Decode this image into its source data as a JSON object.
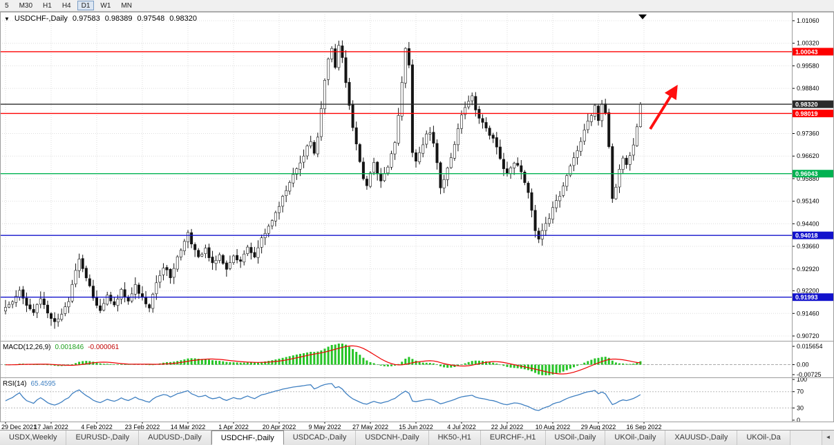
{
  "toolbar": {
    "timeframes": [
      "5",
      "M30",
      "H1",
      "H4",
      "D1",
      "W1",
      "MN"
    ],
    "active": "D1"
  },
  "chart_title": {
    "collapse_arrow": "▼",
    "symbol": "USDCHF-,Daily",
    "open": "0.97583",
    "high": "0.98389",
    "low": "0.97548",
    "close": "0.98320"
  },
  "chart_data": {
    "type": "candlestick",
    "symbol": "USDCHF-",
    "period": "Daily",
    "candle_count": 182,
    "last_candle": {
      "open": 0.97583,
      "high": 0.98389,
      "low": 0.97548,
      "close": 0.9832
    },
    "y_axis": {
      "price_max": 1.013541,
      "price_min": 0.905613,
      "tick_labels": [
        "1.01060",
        "1.00320",
        "0.99580",
        "0.98840",
        "0.97360",
        "0.96620",
        "0.95880",
        "0.95140",
        "0.94400",
        "0.93660",
        "0.92920",
        "0.92200",
        "0.91460",
        "0.90720"
      ]
    },
    "x_axis": {
      "candles_per_gridline": 13,
      "date_labels": [
        "29 Dec 2021",
        "17 Jan 2022",
        "4 Feb 2022",
        "23 Feb 2022",
        "14 Mar 2022",
        "1 Apr 2022",
        "20 Apr 2022",
        "9 May 2022",
        "27 May 2022",
        "15 Jun 2022",
        "4 Jul 2022",
        "22 Jul 2022",
        "10 Aug 2022",
        "29 Aug 2022",
        "16 Sep 2022"
      ]
    },
    "price_path": [
      [
        0,
        0.9165
      ],
      [
        2,
        0.919
      ],
      [
        4,
        0.9228
      ],
      [
        6,
        0.9178
      ],
      [
        8,
        0.9148
      ],
      [
        10,
        0.9192
      ],
      [
        12,
        0.915
      ],
      [
        14,
        0.9118
      ],
      [
        16,
        0.9142
      ],
      [
        18,
        0.919
      ],
      [
        20,
        0.9288
      ],
      [
        21,
        0.9322
      ],
      [
        23,
        0.9268
      ],
      [
        25,
        0.9198
      ],
      [
        27,
        0.9158
      ],
      [
        29,
        0.9212
      ],
      [
        31,
        0.9168
      ],
      [
        33,
        0.9222
      ],
      [
        35,
        0.9188
      ],
      [
        37,
        0.9238
      ],
      [
        39,
        0.9198
      ],
      [
        41,
        0.9168
      ],
      [
        43,
        0.9252
      ],
      [
        45,
        0.9298
      ],
      [
        47,
        0.9268
      ],
      [
        49,
        0.9328
      ],
      [
        51,
        0.9388
      ],
      [
        52,
        0.9415
      ],
      [
        53,
        0.9368
      ],
      [
        55,
        0.9328
      ],
      [
        57,
        0.9362
      ],
      [
        59,
        0.9308
      ],
      [
        61,
        0.9342
      ],
      [
        63,
        0.9288
      ],
      [
        65,
        0.9328
      ],
      [
        67,
        0.9318
      ],
      [
        69,
        0.9358
      ],
      [
        71,
        0.9328
      ],
      [
        73,
        0.9388
      ],
      [
        75,
        0.9428
      ],
      [
        77,
        0.9472
      ],
      [
        79,
        0.9528
      ],
      [
        81,
        0.9578
      ],
      [
        83,
        0.9622
      ],
      [
        85,
        0.9668
      ],
      [
        87,
        0.9715
      ],
      [
        88,
        0.9665
      ],
      [
        89,
        0.972
      ],
      [
        90,
        0.982
      ],
      [
        91,
        0.9905
      ],
      [
        92,
        0.9975
      ],
      [
        93,
        1.002
      ],
      [
        94,
        0.9955
      ],
      [
        95,
        1.003
      ],
      [
        96,
        0.9985
      ],
      [
        97,
        0.9905
      ],
      [
        98,
        0.983
      ],
      [
        99,
        0.976
      ],
      [
        100,
        0.97
      ],
      [
        101,
        0.964
      ],
      [
        102,
        0.959
      ],
      [
        103,
        0.956
      ],
      [
        104,
        0.96
      ],
      [
        105,
        0.964
      ],
      [
        106,
        0.961
      ],
      [
        107,
        0.9586
      ],
      [
        108,
        0.9605
      ],
      [
        109,
        0.963
      ],
      [
        110,
        0.9665
      ],
      [
        111,
        0.9705
      ],
      [
        112,
        0.979
      ],
      [
        113,
        0.99
      ],
      [
        114,
        1.001
      ],
      [
        115,
        0.9955
      ],
      [
        116,
        0.968
      ],
      [
        117,
        0.964
      ],
      [
        118,
        0.967
      ],
      [
        119,
        0.9705
      ],
      [
        120,
        0.974
      ],
      [
        121,
        0.9745
      ],
      [
        122,
        0.97
      ],
      [
        123,
        0.9645
      ],
      [
        124,
        0.956
      ],
      [
        125,
        0.959
      ],
      [
        126,
        0.9625
      ],
      [
        128,
        0.97
      ],
      [
        130,
        0.979
      ],
      [
        131,
        0.9815
      ],
      [
        132,
        0.984
      ],
      [
        133,
        0.9855
      ],
      [
        134,
        0.982
      ],
      [
        135,
        0.979
      ],
      [
        136,
        0.977
      ],
      [
        137,
        0.975
      ],
      [
        139,
        0.972
      ],
      [
        140,
        0.969
      ],
      [
        141,
        0.965
      ],
      [
        142,
        0.9625
      ],
      [
        143,
        0.96
      ],
      [
        144,
        0.962
      ],
      [
        145,
        0.964
      ],
      [
        146,
        0.9625
      ],
      [
        147,
        0.961
      ],
      [
        148,
        0.958
      ],
      [
        149,
        0.954
      ],
      [
        150,
        0.948
      ],
      [
        151,
        0.942
      ],
      [
        152,
        0.9385
      ],
      [
        153,
        0.942
      ],
      [
        154,
        0.944
      ],
      [
        155,
        0.946
      ],
      [
        156,
        0.949
      ],
      [
        157,
        0.951
      ],
      [
        158,
        0.9535
      ],
      [
        159,
        0.956
      ],
      [
        160,
        0.9595
      ],
      [
        161,
        0.9625
      ],
      [
        162,
        0.9655
      ],
      [
        163,
        0.9685
      ],
      [
        164,
        0.9715
      ],
      [
        165,
        0.9745
      ],
      [
        166,
        0.9775
      ],
      [
        167,
        0.98
      ],
      [
        168,
        0.9825
      ],
      [
        169,
        0.9785
      ],
      [
        170,
        0.9828
      ],
      [
        171,
        0.9798
      ],
      [
        172,
        0.9692
      ],
      [
        173,
        0.9525
      ],
      [
        174,
        0.9565
      ],
      [
        175,
        0.9615
      ],
      [
        176,
        0.965
      ],
      [
        177,
        0.9628
      ],
      [
        178,
        0.9662
      ],
      [
        179,
        0.9702
      ],
      [
        180,
        0.9758
      ],
      [
        181,
        0.9832
      ]
    ],
    "levels": [
      {
        "price": 1.00043,
        "label": "1.00043",
        "color": "#FE0000"
      },
      {
        "price": 0.9832,
        "label": "0.98320",
        "color": "#2A2A2A"
      },
      {
        "price": 0.98019,
        "label": "0.98019",
        "color": "#FE0000"
      },
      {
        "price": 0.96043,
        "label": "0.96043",
        "color": "#00B251"
      },
      {
        "price": 0.94018,
        "label": "0.94018",
        "color": "#1212CC"
      },
      {
        "price": 0.91993,
        "label": "0.91993",
        "color": "#1212CC"
      }
    ],
    "annotations": [
      {
        "type": "arrow",
        "direction": "up-right",
        "color": "#FF0F0F"
      }
    ]
  },
  "macd_panel": {
    "name": "MACD(12,26,9)",
    "value_main": "0.001846",
    "value_signal": "-0.000061",
    "params": {
      "fast": 12,
      "slow": 26,
      "signal": 9
    },
    "axis_labels": {
      "top": "0.015654",
      "zero": "0.00",
      "bottom": "-0.00725"
    }
  },
  "rsi_panel": {
    "name": "RSI(14)",
    "value": "65.4595",
    "period": 14,
    "levels": [
      70,
      30
    ],
    "axis_labels": [
      "100",
      "70",
      "30",
      "0"
    ]
  },
  "tabs": {
    "items": [
      "USDX,Weekly",
      "EURUSD-,Daily",
      "AUDUSD-,Daily",
      "USDCHF-,Daily",
      "USDCAD-,Daily",
      "USDCNH-,Daily",
      "HK50-,H1",
      "EURCHF-,H1",
      "USOil-,Daily",
      "UKOil-,Daily",
      "XAUUSD-,Daily",
      "UKOil-,Da"
    ],
    "active": "USDCHF-,Daily",
    "scroll_left_icon": "◄"
  },
  "colors": {
    "grid": "#DCDCDC",
    "candle_up": "#FFFFFF",
    "candle_down": "#141414",
    "candle_border": "#141414",
    "macd_histogram": "#27C427",
    "macd_signal": "#EE0000",
    "rsi_line": "#3E7FC1",
    "arrow": "#FF0F0F",
    "pane_border": "#9C9C9C",
    "tag_text": "#FFFFFF"
  }
}
